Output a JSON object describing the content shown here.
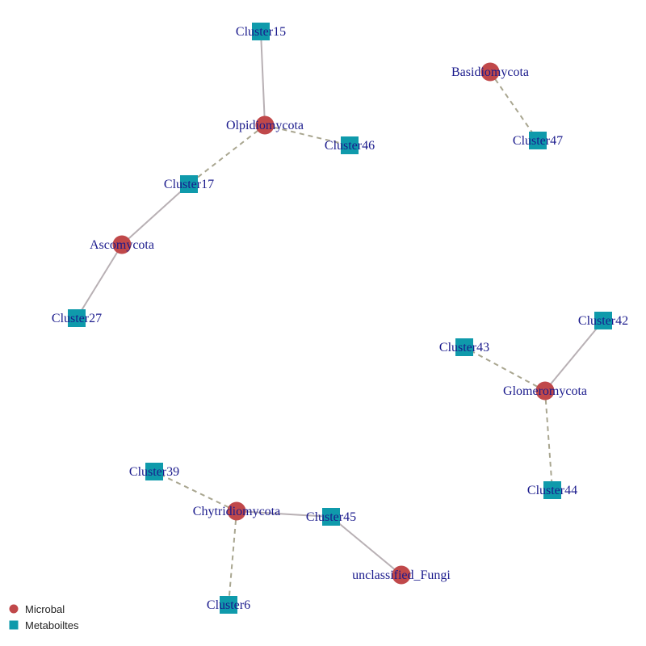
{
  "colors": {
    "microbial": "#c0484a",
    "metabolite": "#0f9aab",
    "edge_solid": "#b8b0b4",
    "edge_dashed": "#a9a690",
    "label": "#1a1a8c"
  },
  "legend": [
    {
      "id": "microbial",
      "label": "Microbal",
      "shape": "circle"
    },
    {
      "id": "metabolite",
      "label": "Metaboiltes",
      "shape": "square"
    }
  ],
  "nodes": [
    {
      "id": "Cluster15",
      "label": "Cluster15",
      "type": "metabolite"
    },
    {
      "id": "Olpidiomycota",
      "label": "Olpidiomycota",
      "type": "microbial"
    },
    {
      "id": "Cluster46",
      "label": "Cluster46",
      "type": "metabolite"
    },
    {
      "id": "Cluster17",
      "label": "Cluster17",
      "type": "metabolite"
    },
    {
      "id": "Ascomycota",
      "label": "Ascomycota",
      "type": "microbial"
    },
    {
      "id": "Cluster27",
      "label": "Cluster27",
      "type": "metabolite"
    },
    {
      "id": "Basidiomycota",
      "label": "Basidiomycota",
      "type": "microbial"
    },
    {
      "id": "Cluster47",
      "label": "Cluster47",
      "type": "metabolite"
    },
    {
      "id": "Cluster42",
      "label": "Cluster42",
      "type": "metabolite"
    },
    {
      "id": "Cluster43",
      "label": "Cluster43",
      "type": "metabolite"
    },
    {
      "id": "Glomeromycota",
      "label": "Glomeromycota",
      "type": "microbial"
    },
    {
      "id": "Cluster44",
      "label": "Cluster44",
      "type": "metabolite"
    },
    {
      "id": "Cluster39",
      "label": "Cluster39",
      "type": "metabolite"
    },
    {
      "id": "Chytridiomycota",
      "label": "Chytridiomycota",
      "type": "microbial"
    },
    {
      "id": "Cluster45",
      "label": "Cluster45",
      "type": "metabolite"
    },
    {
      "id": "unclassified_Fungi",
      "label": "unclassified_Fungi",
      "type": "microbial"
    },
    {
      "id": "Cluster6",
      "label": "Cluster6",
      "type": "metabolite"
    }
  ],
  "edges": [
    {
      "source": "Cluster15",
      "target": "Olpidiomycota",
      "style": "solid"
    },
    {
      "source": "Olpidiomycota",
      "target": "Cluster46",
      "style": "dashed"
    },
    {
      "source": "Olpidiomycota",
      "target": "Cluster17",
      "style": "dashed"
    },
    {
      "source": "Cluster17",
      "target": "Ascomycota",
      "style": "solid"
    },
    {
      "source": "Ascomycota",
      "target": "Cluster27",
      "style": "solid"
    },
    {
      "source": "Basidiomycota",
      "target": "Cluster47",
      "style": "dashed"
    },
    {
      "source": "Glomeromycota",
      "target": "Cluster42",
      "style": "solid"
    },
    {
      "source": "Glomeromycota",
      "target": "Cluster43",
      "style": "dashed"
    },
    {
      "source": "Glomeromycota",
      "target": "Cluster44",
      "style": "dashed"
    },
    {
      "source": "Chytridiomycota",
      "target": "Cluster39",
      "style": "dashed"
    },
    {
      "source": "Chytridiomycota",
      "target": "Cluster45",
      "style": "solid"
    },
    {
      "source": "Chytridiomycota",
      "target": "Cluster6",
      "style": "dashed"
    },
    {
      "source": "Cluster45",
      "target": "unclassified_Fungi",
      "style": "solid"
    }
  ]
}
